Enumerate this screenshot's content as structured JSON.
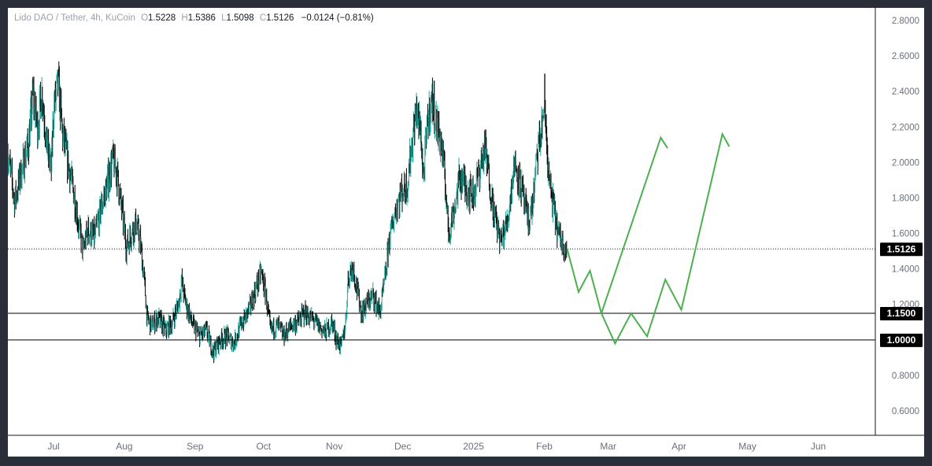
{
  "legend": {
    "symbol": "Lido DAO / Tether, 4h, KuCoin",
    "open_label": "O",
    "open": "1.5228",
    "high_label": "H",
    "high": "1.5386",
    "low_label": "L",
    "low": "1.5098",
    "close_label": "C",
    "close": "1.5126",
    "change": "−0.0124 (−0.81%)"
  },
  "colors": {
    "up": "#26a69a",
    "down": "#000000",
    "projection": "#4caf50",
    "levels": "#000000",
    "price_label_bg": "#000000",
    "axis_text": "#6a6f7a"
  },
  "chart_data": {
    "type": "candlestick",
    "symbol": "Lido DAO / Tether",
    "interval": "4h",
    "exchange": "KuCoin",
    "ylim": [
      0.5,
      2.92
    ],
    "y_ticks": [
      "2.8000",
      "2.6000",
      "2.4000",
      "2.2000",
      "2.0000",
      "1.8000",
      "1.6000",
      "1.4000",
      "1.2000",
      "1.0000",
      "0.8000",
      "0.6000"
    ],
    "x_ticks": [
      {
        "label": "Jul",
        "date": "2024-07-01"
      },
      {
        "label": "Aug",
        "date": "2024-08-01"
      },
      {
        "label": "Sep",
        "date": "2024-09-01"
      },
      {
        "label": "Oct",
        "date": "2024-10-01"
      },
      {
        "label": "Nov",
        "date": "2024-11-01"
      },
      {
        "label": "Dec",
        "date": "2024-12-01"
      },
      {
        "label": "2025",
        "date": "2025-01-01"
      },
      {
        "label": "Feb",
        "date": "2025-02-01"
      },
      {
        "label": "Mar",
        "date": "2025-03-01"
      },
      {
        "label": "Apr",
        "date": "2025-04-01"
      },
      {
        "label": "May",
        "date": "2025-05-01"
      },
      {
        "label": "Jun",
        "date": "2025-06-01"
      }
    ],
    "x_range": [
      "2024-06-11",
      "2025-06-26"
    ],
    "price_path": [
      [
        "2024-06-11",
        2.05
      ],
      [
        "2024-06-14",
        1.78
      ],
      [
        "2024-06-17",
        1.95
      ],
      [
        "2024-06-20",
        2.1
      ],
      [
        "2024-06-22",
        2.38
      ],
      [
        "2024-06-24",
        2.2
      ],
      [
        "2024-06-26",
        2.4
      ],
      [
        "2024-06-28",
        2.1
      ],
      [
        "2024-06-30",
        1.95
      ],
      [
        "2024-07-01",
        2.3
      ],
      [
        "2024-07-03",
        2.45
      ],
      [
        "2024-07-05",
        2.15
      ],
      [
        "2024-07-08",
        1.95
      ],
      [
        "2024-07-10",
        1.82
      ],
      [
        "2024-07-12",
        1.65
      ],
      [
        "2024-07-14",
        1.5
      ],
      [
        "2024-07-16",
        1.62
      ],
      [
        "2024-07-19",
        1.58
      ],
      [
        "2024-07-22",
        1.75
      ],
      [
        "2024-07-25",
        1.9
      ],
      [
        "2024-07-27",
        2.02
      ],
      [
        "2024-07-29",
        1.92
      ],
      [
        "2024-07-31",
        1.72
      ],
      [
        "2024-08-02",
        1.52
      ],
      [
        "2024-08-04",
        1.6
      ],
      [
        "2024-08-06",
        1.66
      ],
      [
        "2024-08-08",
        1.55
      ],
      [
        "2024-08-10",
        1.3
      ],
      [
        "2024-08-11",
        1.12
      ],
      [
        "2024-08-13",
        1.08
      ],
      [
        "2024-08-16",
        1.12
      ],
      [
        "2024-08-19",
        1.05
      ],
      [
        "2024-08-22",
        1.1
      ],
      [
        "2024-08-25",
        1.22
      ],
      [
        "2024-08-26",
        1.33
      ],
      [
        "2024-08-28",
        1.2
      ],
      [
        "2024-08-31",
        1.08
      ],
      [
        "2024-09-03",
        1.02
      ],
      [
        "2024-09-06",
        1.05
      ],
      [
        "2024-09-09",
        0.93
      ],
      [
        "2024-09-12",
        1.0
      ],
      [
        "2024-09-15",
        1.02
      ],
      [
        "2024-09-18",
        0.98
      ],
      [
        "2024-09-21",
        1.08
      ],
      [
        "2024-09-25",
        1.18
      ],
      [
        "2024-09-28",
        1.3
      ],
      [
        "2024-09-30",
        1.38
      ],
      [
        "2024-10-02",
        1.25
      ],
      [
        "2024-10-04",
        1.05
      ],
      [
        "2024-10-07",
        1.08
      ],
      [
        "2024-10-10",
        1.02
      ],
      [
        "2024-10-13",
        1.08
      ],
      [
        "2024-10-16",
        1.1
      ],
      [
        "2024-10-19",
        1.15
      ],
      [
        "2024-10-22",
        1.12
      ],
      [
        "2024-10-25",
        1.08
      ],
      [
        "2024-10-28",
        1.04
      ],
      [
        "2024-10-31",
        1.1
      ],
      [
        "2024-11-02",
        1.0
      ],
      [
        "2024-11-04",
        0.96
      ],
      [
        "2024-11-06",
        1.1
      ],
      [
        "2024-11-07",
        1.35
      ],
      [
        "2024-11-09",
        1.42
      ],
      [
        "2024-11-11",
        1.28
      ],
      [
        "2024-11-13",
        1.15
      ],
      [
        "2024-11-15",
        1.2
      ],
      [
        "2024-11-18",
        1.25
      ],
      [
        "2024-11-21",
        1.15
      ],
      [
        "2024-11-23",
        1.32
      ],
      [
        "2024-11-25",
        1.55
      ],
      [
        "2024-11-28",
        1.75
      ],
      [
        "2024-11-30",
        1.82
      ],
      [
        "2024-12-03",
        1.88
      ],
      [
        "2024-12-05",
        2.1
      ],
      [
        "2024-12-07",
        2.3
      ],
      [
        "2024-12-09",
        2.15
      ],
      [
        "2024-12-10",
        1.9
      ],
      [
        "2024-12-12",
        2.25
      ],
      [
        "2024-12-14",
        2.35
      ],
      [
        "2024-12-16",
        2.2
      ],
      [
        "2024-12-18",
        2.1
      ],
      [
        "2024-12-20",
        1.82
      ],
      [
        "2024-12-21",
        1.6
      ],
      [
        "2024-12-23",
        1.7
      ],
      [
        "2024-12-26",
        1.92
      ],
      [
        "2024-12-29",
        1.85
      ],
      [
        "2025-01-01",
        1.82
      ],
      [
        "2025-01-04",
        1.98
      ],
      [
        "2025-01-06",
        2.08
      ],
      [
        "2025-01-09",
        1.8
      ],
      [
        "2025-01-11",
        1.65
      ],
      [
        "2025-01-13",
        1.55
      ],
      [
        "2025-01-16",
        1.68
      ],
      [
        "2025-01-19",
        2.0
      ],
      [
        "2025-01-22",
        1.85
      ],
      [
        "2025-01-25",
        1.65
      ],
      [
        "2025-01-27",
        1.78
      ],
      [
        "2025-01-29",
        2.05
      ],
      [
        "2025-01-31",
        2.2
      ],
      [
        "2025-02-01",
        2.35
      ],
      [
        "2025-02-03",
        1.9
      ],
      [
        "2025-02-05",
        1.75
      ],
      [
        "2025-02-07",
        1.6
      ],
      [
        "2025-02-09",
        1.55
      ],
      [
        "2025-02-11",
        1.5126
      ]
    ],
    "projection": [
      [
        "2025-02-11",
        1.5126
      ],
      [
        "2025-02-16",
        1.27
      ],
      [
        "2025-02-21",
        1.39
      ],
      [
        "2025-02-26",
        1.15
      ],
      [
        "2025-03-04",
        0.98
      ],
      [
        "2025-03-11",
        1.15
      ],
      [
        "2025-03-18",
        1.02
      ],
      [
        "2025-03-26",
        1.34
      ],
      [
        "2025-04-02",
        1.17
      ],
      [
        "2025-04-20",
        2.16
      ],
      [
        "2025-04-23",
        2.09
      ]
    ],
    "projection2": [
      [
        "2025-03-26",
        1.34
      ],
      [
        "2025-02-26",
        1.15
      ]
    ],
    "projection_alt": [
      [
        "2025-02-26",
        1.15
      ],
      [
        "2025-03-24",
        2.14
      ],
      [
        "2025-03-27",
        2.08
      ]
    ],
    "horizontal_levels": [
      1.15,
      1.0
    ],
    "last_price": 1.5126,
    "price_labels": [
      "1.5126",
      "1.1500",
      "1.0000"
    ]
  }
}
